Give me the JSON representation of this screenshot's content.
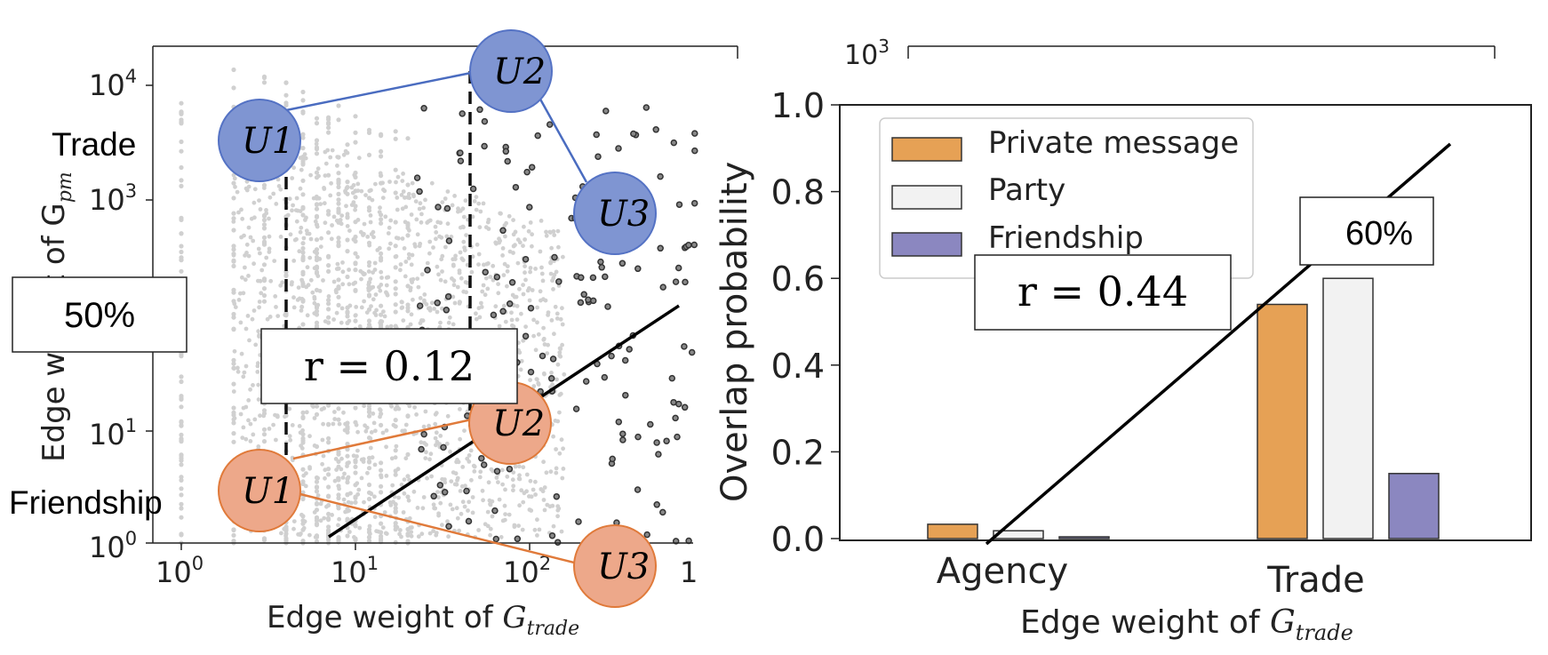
{
  "chart_data": [
    {
      "type": "scatter",
      "xlabel_prefix": "Edge weight of ",
      "xlabel_sym": "G",
      "xlabel_sub": "trade",
      "ylabel": "Edge weight of G",
      "ylabel_sub": "pm",
      "x_scale": "log",
      "y_scale": "log",
      "xlim": [
        0.7,
        1000
      ],
      "ylim": [
        1,
        30000
      ],
      "x_ticks": [
        {
          "base": "10",
          "exp": "0"
        },
        {
          "base": "10",
          "exp": "1"
        },
        {
          "base": "10",
          "exp": "2"
        },
        {
          "base": "1",
          "exp": ""
        }
      ],
      "y_ticks": [
        {
          "base": "10",
          "exp": "0"
        },
        {
          "base": "10",
          "exp": "1"
        },
        {
          "base": "10",
          "exp": "3"
        },
        {
          "base": "10",
          "exp": "4"
        }
      ],
      "annotations": {
        "trade_label": "Trade",
        "friendship_label": "Friendship",
        "percent_box": "50%",
        "r_box": "r = 0.12",
        "node_u1": "U1",
        "node_u2": "U2",
        "node_u3": "U3"
      },
      "colors": {
        "grey_points": "#d0d0d0",
        "dark_points": "#333333",
        "trade_node": "#7f95d2",
        "friend_node": "#eda88a",
        "trade_edge": "#4a6cc0",
        "friend_edge": "#e07a3a"
      }
    },
    {
      "type": "bar",
      "categories": [
        "Agency",
        "Trade"
      ],
      "series": [
        {
          "name": "Private message",
          "values": [
            0.033,
            0.54
          ],
          "color": "#e6a155"
        },
        {
          "name": "Party",
          "values": [
            0.018,
            0.6
          ],
          "color": "#f2f2f2"
        },
        {
          "name": "Friendship",
          "values": [
            0.004,
            0.15
          ],
          "color": "#8b87c0"
        }
      ],
      "ylabel": "Overlap probability",
      "ylim": [
        0,
        1.0
      ],
      "y_ticks": [
        "0.0",
        "0.2",
        "0.4",
        "0.6",
        "0.8",
        "1.0"
      ],
      "xlabel_prefix": "Edge weight of ",
      "xlabel_sym": "G",
      "xlabel_sub": "trade",
      "behind_tick": "10",
      "behind_tick_exp": "3",
      "legend_placement": "top-left",
      "annotations": {
        "percent_box": "60%",
        "r_box": "r = 0.44"
      }
    }
  ]
}
